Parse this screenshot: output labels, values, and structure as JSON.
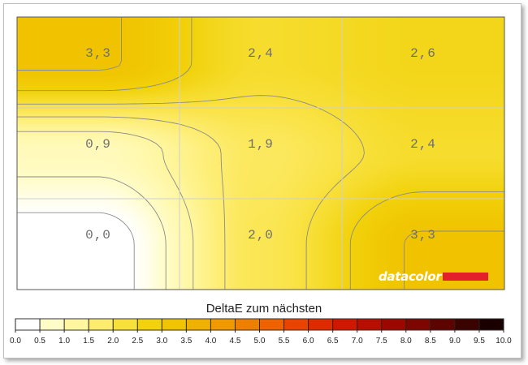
{
  "chart_data": {
    "type": "heatmap",
    "title": "DeltaE zum nächsten",
    "grid": true,
    "rows": 3,
    "cols": 3,
    "values": [
      [
        3.3,
        2.4,
        2.6
      ],
      [
        0.9,
        1.9,
        2.4
      ],
      [
        0.0,
        2.0,
        3.3
      ]
    ],
    "labels": [
      [
        "3,3",
        "2,4",
        "2,6"
      ],
      [
        "0,9",
        "1,9",
        "2,4"
      ],
      [
        "0,0",
        "2,0",
        "3,3"
      ]
    ],
    "colorbar": {
      "min": 0.0,
      "max": 10.0,
      "ticks": [
        "0.0",
        "0.5",
        "1.0",
        "1.5",
        "2.0",
        "2.5",
        "3.0",
        "3.5",
        "4.0",
        "4.5",
        "5.0",
        "5.5",
        "6.0",
        "6.5",
        "7.0",
        "7.5",
        "8.0",
        "8.5",
        "9.0",
        "9.5",
        "10.0"
      ],
      "colors": [
        "#ffffff",
        "#fffcc8",
        "#fff6a0",
        "#fdec6e",
        "#f8e03a",
        "#f1d20c",
        "#f0c400",
        "#f0b000",
        "#f09a00",
        "#ef7f00",
        "#ee6200",
        "#ea4300",
        "#e02a00",
        "#d01700",
        "#b80e00",
        "#9c0800",
        "#7e0600",
        "#5e0400",
        "#3a0300",
        "#1a0100"
      ]
    }
  },
  "branding": {
    "logo_text": "datacolor"
  },
  "colors": {
    "contour_line": "#8a8a8a",
    "grid_line": "#cfcfcf",
    "plot_border": "#555555"
  }
}
